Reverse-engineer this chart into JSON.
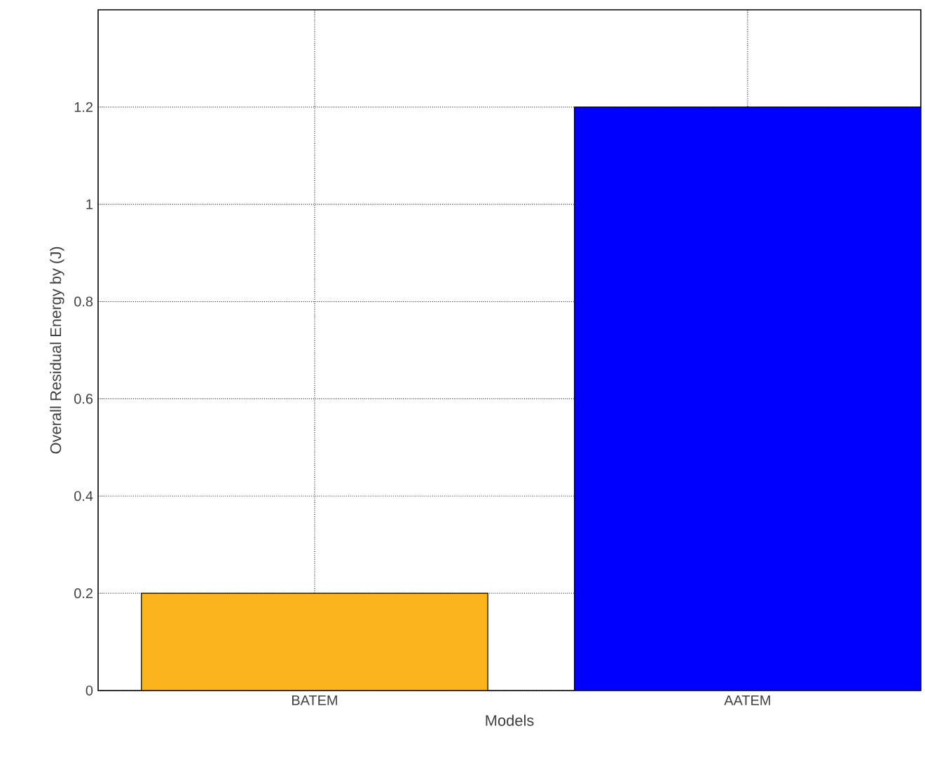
{
  "chart_data": {
    "type": "bar",
    "xlabel": "Models",
    "ylabel": "Overall Residual Energy by (J)",
    "categories": [
      "BATEM",
      "AATEM"
    ],
    "values": [
      0.2,
      1.2
    ],
    "colors": [
      "#f9b51b",
      "#0000ff"
    ],
    "ylim": [
      0,
      1.4
    ],
    "yticks": [
      0,
      0.2,
      0.4,
      0.6,
      0.8,
      1,
      1.2
    ],
    "grid": true
  }
}
